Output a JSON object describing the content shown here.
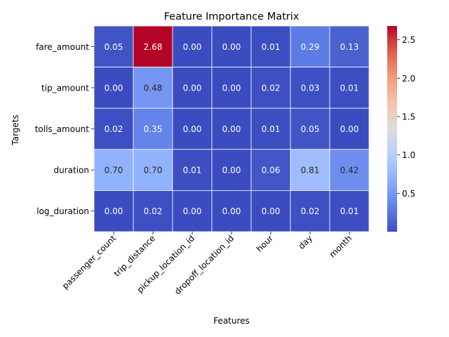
{
  "chart_data": {
    "type": "heatmap",
    "title": "Feature Importance Matrix",
    "xlabel": "Features",
    "ylabel": "Targets",
    "x_categories": [
      "passenger_count",
      "trip_distance",
      "pickup_location_id",
      "dropoff_location_id",
      "hour",
      "day",
      "month"
    ],
    "y_categories": [
      "fare_amount",
      "tip_amount",
      "tolls_amount",
      "duration",
      "log_duration"
    ],
    "values": [
      [
        0.05,
        2.68,
        0.0,
        0.0,
        0.01,
        0.29,
        0.13
      ],
      [
        0.0,
        0.48,
        0.0,
        0.0,
        0.02,
        0.03,
        0.01
      ],
      [
        0.02,
        0.35,
        0.0,
        0.0,
        0.01,
        0.05,
        0.0
      ],
      [
        0.7,
        0.7,
        0.01,
        0.0,
        0.06,
        0.81,
        0.42
      ],
      [
        0.0,
        0.02,
        0.0,
        0.0,
        0.0,
        0.02,
        0.01
      ]
    ],
    "cell_labels": [
      [
        "0.05",
        "2.68",
        "0.00",
        "0.00",
        "0.01",
        "0.29",
        "0.13"
      ],
      [
        "0.00",
        "0.48",
        "0.00",
        "0.00",
        "0.02",
        "0.03",
        "0.01"
      ],
      [
        "0.02",
        "0.35",
        "0.00",
        "0.00",
        "0.01",
        "0.05",
        "0.00"
      ],
      [
        "0.70",
        "0.70",
        "0.01",
        "0.00",
        "0.06",
        "0.81",
        "0.42"
      ],
      [
        "0.00",
        "0.02",
        "0.00",
        "0.00",
        "0.00",
        "0.02",
        "0.01"
      ]
    ],
    "colormap": "coolwarm",
    "color_range": [
      0.0,
      2.68
    ],
    "colorbar_ticks": [
      0.5,
      1.0,
      1.5,
      2.0,
      2.5
    ],
    "colorbar_tick_labels": [
      "0.5",
      "1.0",
      "1.5",
      "2.0",
      "2.5"
    ],
    "legend": "colorbar-right",
    "grid": false
  }
}
